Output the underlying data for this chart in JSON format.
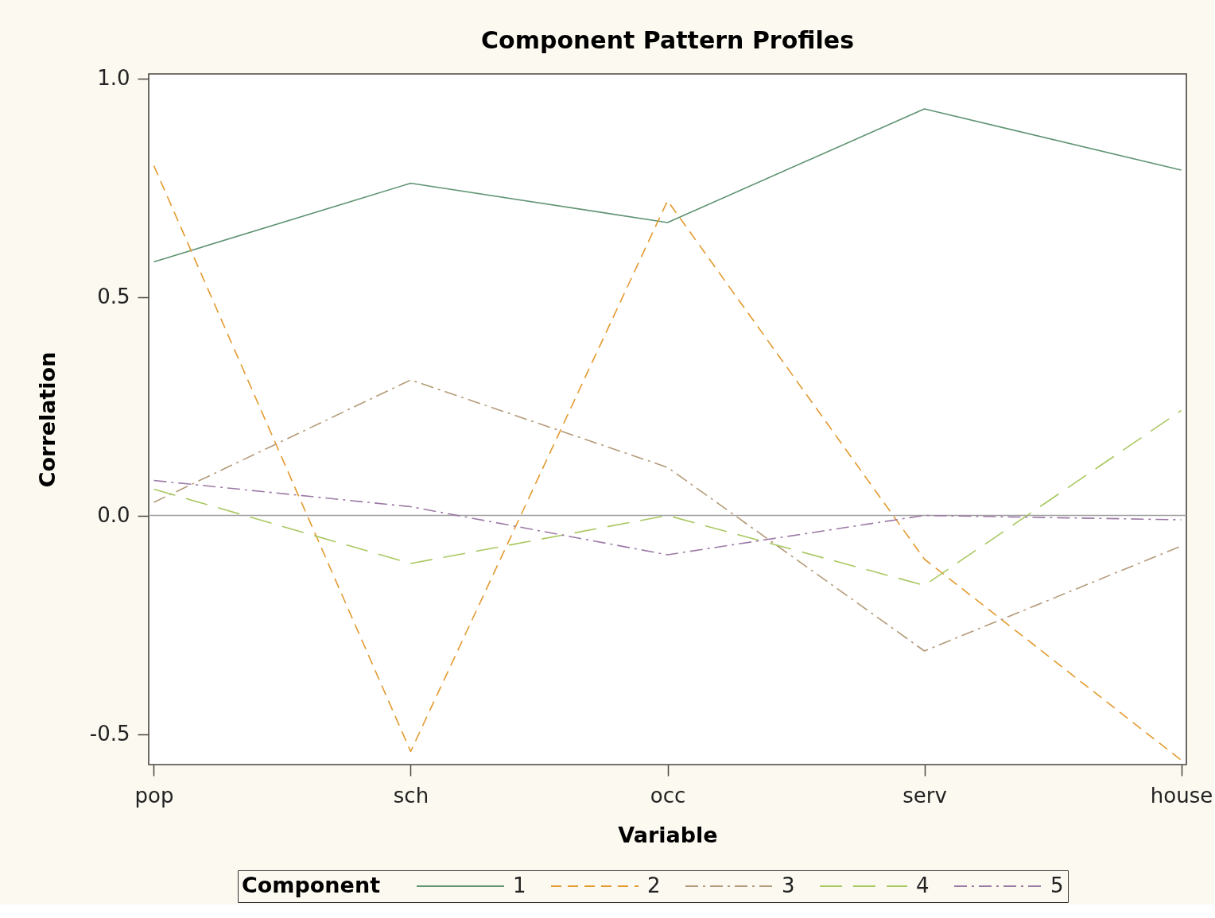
{
  "chart_data": {
    "type": "line",
    "title": "Component Pattern Profiles",
    "xlabel": "Variable",
    "ylabel": "Correlation",
    "legend_title": "Component",
    "categories": [
      "pop",
      "sch",
      "occ",
      "serv",
      "house"
    ],
    "series": [
      {
        "name": "1",
        "color": "#5f9472",
        "line_style": "solid",
        "values": [
          0.58,
          0.76,
          0.67,
          0.93,
          0.79
        ]
      },
      {
        "name": "2",
        "color": "#e39a2e",
        "line_style": "dashed",
        "values": [
          0.8,
          -0.54,
          0.72,
          -0.1,
          -0.56
        ]
      },
      {
        "name": "3",
        "color": "#b39a78",
        "line_style": "dashdot",
        "values": [
          0.03,
          0.31,
          0.11,
          -0.31,
          -0.07
        ]
      },
      {
        "name": "4",
        "color": "#a8c860",
        "line_style": "longdash",
        "values": [
          0.06,
          -0.11,
          0.0,
          -0.16,
          0.24
        ]
      },
      {
        "name": "5",
        "color": "#9c7aa6",
        "line_style": "dashdot",
        "values": [
          0.08,
          0.02,
          -0.09,
          0.0,
          -0.01
        ]
      }
    ],
    "ylim": [
      -0.57,
      1.01
    ],
    "yticks": [
      -0.5,
      {
        "value": 0,
        "label": "0.0"
      },
      0.5,
      {
        "value": 1,
        "label": "1.0"
      }
    ],
    "ref_lines": [
      {
        "axis": "y",
        "value": 0,
        "color": "#a0a0a0"
      }
    ],
    "grid": false,
    "legend": "bottom",
    "marker": "none"
  }
}
